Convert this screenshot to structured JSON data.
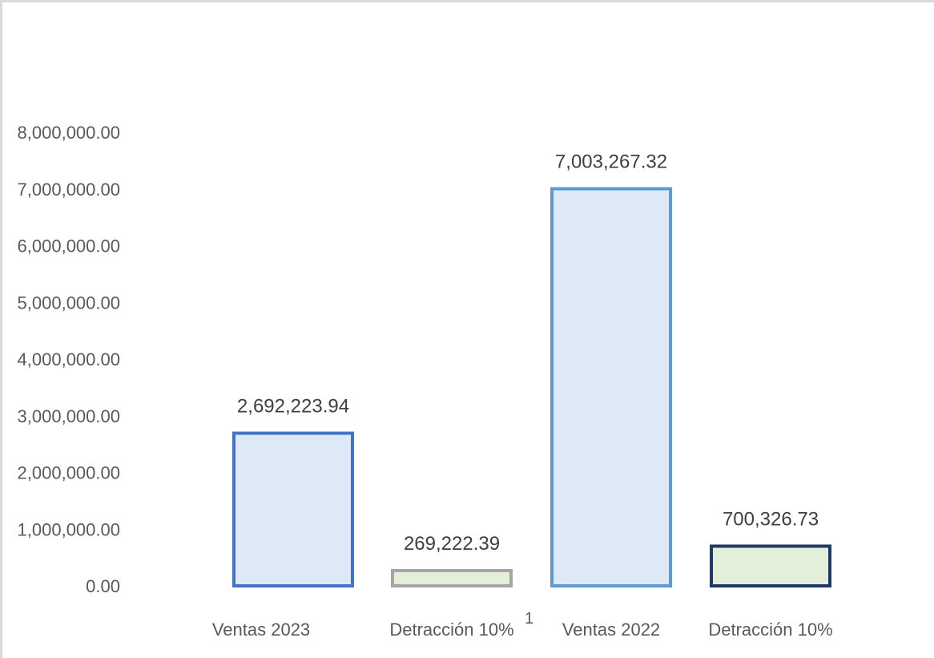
{
  "chart_data": {
    "type": "bar",
    "categories": [
      "Ventas 2023",
      "Detracción 10%",
      "Ventas 2022",
      "Detracción 10%"
    ],
    "values": [
      2692223.94,
      269222.39,
      7003267.32,
      700326.73
    ],
    "data_labels": [
      "2,692,223.94",
      "269,222.39",
      "7,003,267.32",
      "700,326.73"
    ],
    "title": "",
    "xlabel": "",
    "ylabel": "",
    "ylim": [
      0,
      8000000
    ],
    "yticks": [
      0,
      1000000,
      2000000,
      3000000,
      4000000,
      5000000,
      6000000,
      7000000,
      8000000
    ],
    "ytick_labels": [
      "0.00",
      "1,000,000.00",
      "2,000,000.00",
      "3,000,000.00",
      "4,000,000.00",
      "5,000,000.00",
      "6,000,000.00",
      "7,000,000.00",
      "8,000,000.00"
    ],
    "grid": false,
    "legend": "none",
    "bar_fills": [
      "#dde9f6",
      "#e3efd9",
      "#dde9f6",
      "#e3efd9"
    ],
    "bar_strokes": [
      "#4472c4",
      "#a5a5a5",
      "#5b9bd5",
      "#203864"
    ]
  },
  "footnote": "1"
}
